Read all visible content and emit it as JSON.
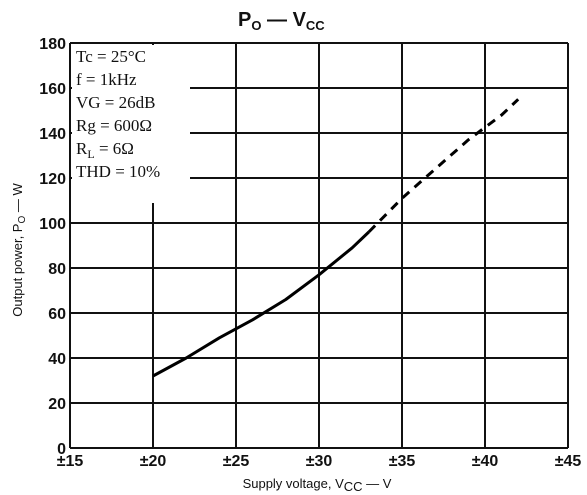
{
  "chart_data": {
    "type": "line",
    "title_main": "P",
    "title_sub1": "O",
    "title_mid": " — V",
    "title_sub2": "CC",
    "xlabel_main": "Supply voltage, V",
    "xlabel_sub": "CC",
    "xlabel_unit": " — V",
    "ylabel_main": "Output power, P",
    "ylabel_sub": "O",
    "ylabel_unit": " — W",
    "x_ticks": [
      "±15",
      "±20",
      "±25",
      "±30",
      "±35",
      "±40",
      "±45"
    ],
    "y_ticks": [
      "0",
      "20",
      "40",
      "60",
      "80",
      "100",
      "120",
      "140",
      "160",
      "180"
    ],
    "xlim": [
      15,
      45
    ],
    "ylim": [
      0,
      180
    ],
    "grid": true,
    "conditions": [
      {
        "main": "Tc = 25°C",
        "sub": ""
      },
      {
        "main": "f = 1kHz",
        "sub": ""
      },
      {
        "main": "VG = 26dB",
        "sub": ""
      },
      {
        "main": "Rg = 600Ω",
        "sub": ""
      },
      {
        "main": "R",
        "sub": "L",
        "rest": " = 6Ω"
      },
      {
        "main": "THD = 10%",
        "sub": ""
      }
    ],
    "series": [
      {
        "style": "solid",
        "x": [
          20,
          22,
          24,
          26,
          28,
          30,
          32,
          33
        ],
        "y": [
          32,
          40,
          49,
          57,
          66,
          77,
          89,
          96
        ]
      },
      {
        "style": "dashed",
        "x": [
          33,
          35,
          37,
          39,
          41,
          42
        ],
        "y": [
          96,
          111,
          124,
          137,
          148,
          155
        ]
      }
    ]
  }
}
